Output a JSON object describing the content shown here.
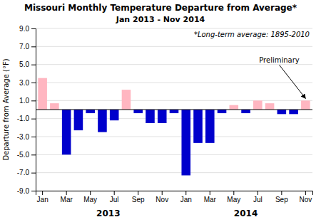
{
  "chart_data": {
    "type": "bar",
    "title": "Missouri Monthly Temperature Departure from Average*",
    "subtitle": "Jan 2013 - Nov 2014",
    "ylabel": "Departure from Average (°F)",
    "annotations": [
      "*Long-term average: 1895-2010",
      "Preliminary"
    ],
    "x_group_labels": [
      "2013",
      "2014"
    ],
    "categories": [
      "Jan",
      null,
      "Mar",
      null,
      "May",
      null,
      "Jul",
      null,
      "Sep",
      null,
      "Nov",
      null,
      "Jan",
      null,
      "Mar",
      null,
      "May",
      null,
      "Jul",
      null,
      "Sep",
      null,
      "Nov"
    ],
    "values": [
      3.5,
      0.7,
      -5.0,
      -2.3,
      -0.4,
      -2.5,
      -1.2,
      2.2,
      -0.4,
      -1.5,
      -1.5,
      -0.4,
      -7.3,
      -3.7,
      -3.7,
      -0.4,
      0.5,
      -0.4,
      1.0,
      0.7,
      -0.5,
      -0.5,
      1.0
    ],
    "colors": [
      "#FFB6C1",
      "#FFB6C1",
      "#0000CC",
      "#0000CC",
      "#0000CC",
      "#0000CC",
      "#0000CC",
      "#FFB6C1",
      "#0000CC",
      "#0000CC",
      "#0000CC",
      "#0000CC",
      "#0000CC",
      "#0000CC",
      "#0000CC",
      "#0000CC",
      "#FFB6C1",
      "#0000CC",
      "#FFB6C1",
      "#FFB6C1",
      "#0000CC",
      "#0000CC",
      "#FFB6C1"
    ],
    "ylim": [
      -9.0,
      9.0
    ],
    "yticks": [
      {
        "value": -9.0,
        "label": "-9.0"
      },
      {
        "value": -7.0,
        "label": "-7.0"
      },
      {
        "value": -5.0,
        "label": "-5.0"
      },
      {
        "value": -3.0,
        "label": "-3.0"
      },
      {
        "value": -1.0,
        "label": "-1.0"
      },
      {
        "value": 1.0,
        "label": "1.0"
      },
      {
        "value": 3.0,
        "label": "3.0"
      },
      {
        "value": 5.0,
        "label": "5.0"
      },
      {
        "value": 7.0,
        "label": "7.0"
      },
      {
        "value": 9.0,
        "label": "9.0"
      }
    ],
    "grid": true
  }
}
